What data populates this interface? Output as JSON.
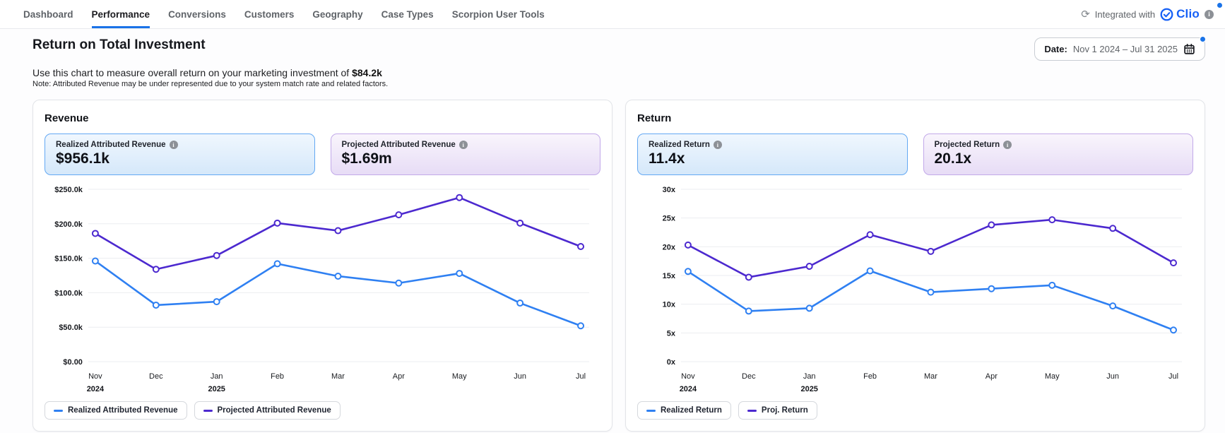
{
  "nav": {
    "tabs": [
      {
        "label": "Dashboard",
        "active": false
      },
      {
        "label": "Performance",
        "active": true
      },
      {
        "label": "Conversions",
        "active": false
      },
      {
        "label": "Customers",
        "active": false
      },
      {
        "label": "Geography",
        "active": false
      },
      {
        "label": "Case Types",
        "active": false
      },
      {
        "label": "Scorpion User Tools",
        "active": false
      }
    ],
    "integration": {
      "prefix": "Integrated with",
      "brand": "Clio"
    },
    "icons": {
      "refresh": "refresh-icon",
      "clio_check": "check-circle-icon",
      "info": "info-icon"
    }
  },
  "header": {
    "title": "Return on Total Investment",
    "subtitle_prefix": "Use this chart to measure overall return on your marketing investment of ",
    "subtitle_value": "$84.2k",
    "note": "Note: Attributed Revenue may be under represented due to your system match rate and related factors.",
    "date_label": "Date:",
    "date_range": "Nov 1 2024 – Jul 31 2025",
    "icons": {
      "calendar": "calendar-icon"
    }
  },
  "colors": {
    "accent_blue": "#1a73e8",
    "realized_line": "#2f80f2",
    "projected_line": "#4c29cf",
    "grid": "#ebedf0",
    "clio_blue": "#1660f6"
  },
  "revenue_panel": {
    "title": "Revenue",
    "stats": [
      {
        "label": "Realized Attributed Revenue",
        "value": "$956.1k",
        "theme": "blue"
      },
      {
        "label": "Projected Attributed Revenue",
        "value": "$1.69m",
        "theme": "purple"
      }
    ]
  },
  "return_panel": {
    "title": "Return",
    "stats": [
      {
        "label": "Realized Return",
        "value": "11.4x",
        "theme": "blue"
      },
      {
        "label": "Projected Return",
        "value": "20.1x",
        "theme": "purple"
      }
    ]
  },
  "chart_data": [
    {
      "type": "line",
      "title": "Revenue",
      "x": [
        "Nov",
        "Dec",
        "Jan",
        "Feb",
        "Mar",
        "Apr",
        "May",
        "Jun",
        "Jul"
      ],
      "x_years": [
        "2024",
        "",
        "2025",
        "",
        "",
        "",
        "",
        "",
        ""
      ],
      "series": [
        {
          "name": "Realized Attributed Revenue",
          "color": "#2f80f2",
          "values": [
            146,
            82,
            87,
            142,
            124,
            114,
            128,
            85,
            52
          ]
        },
        {
          "name": "Projected Attributed Revenue",
          "color": "#4c29cf",
          "values": [
            186,
            134,
            154,
            201,
            190,
            213,
            238,
            201,
            167
          ]
        }
      ],
      "unit": "USD thousands",
      "ylim": [
        0,
        250
      ],
      "yticks": [
        {
          "v": 250,
          "label": "$250.0k"
        },
        {
          "v": 200,
          "label": "$200.0k"
        },
        {
          "v": 150,
          "label": "$150.0k"
        },
        {
          "v": 100,
          "label": "$100.0k"
        },
        {
          "v": 50,
          "label": "$50.0k"
        },
        {
          "v": 0,
          "label": "$0.00"
        }
      ],
      "grid": true,
      "legend_position": "bottom"
    },
    {
      "type": "line",
      "title": "Return",
      "x": [
        "Nov",
        "Dec",
        "Jan",
        "Feb",
        "Mar",
        "Apr",
        "May",
        "Jun",
        "Jul"
      ],
      "x_years": [
        "2024",
        "",
        "2025",
        "",
        "",
        "",
        "",
        "",
        ""
      ],
      "series": [
        {
          "name": "Realized Return",
          "color": "#2f80f2",
          "values": [
            15.7,
            8.8,
            9.3,
            15.8,
            12.1,
            12.7,
            13.3,
            9.7,
            5.5
          ]
        },
        {
          "name": "Proj. Return",
          "color": "#4c29cf",
          "values": [
            20.3,
            14.7,
            16.6,
            22.1,
            19.2,
            23.8,
            24.7,
            23.2,
            17.2
          ]
        }
      ],
      "unit": "x (multiple)",
      "ylim": [
        0,
        30
      ],
      "yticks": [
        {
          "v": 30,
          "label": "30x"
        },
        {
          "v": 25,
          "label": "25x"
        },
        {
          "v": 20,
          "label": "20x"
        },
        {
          "v": 15,
          "label": "15x"
        },
        {
          "v": 10,
          "label": "10x"
        },
        {
          "v": 5,
          "label": "5x"
        },
        {
          "v": 0,
          "label": "0x"
        }
      ],
      "grid": true,
      "legend_position": "bottom"
    }
  ]
}
